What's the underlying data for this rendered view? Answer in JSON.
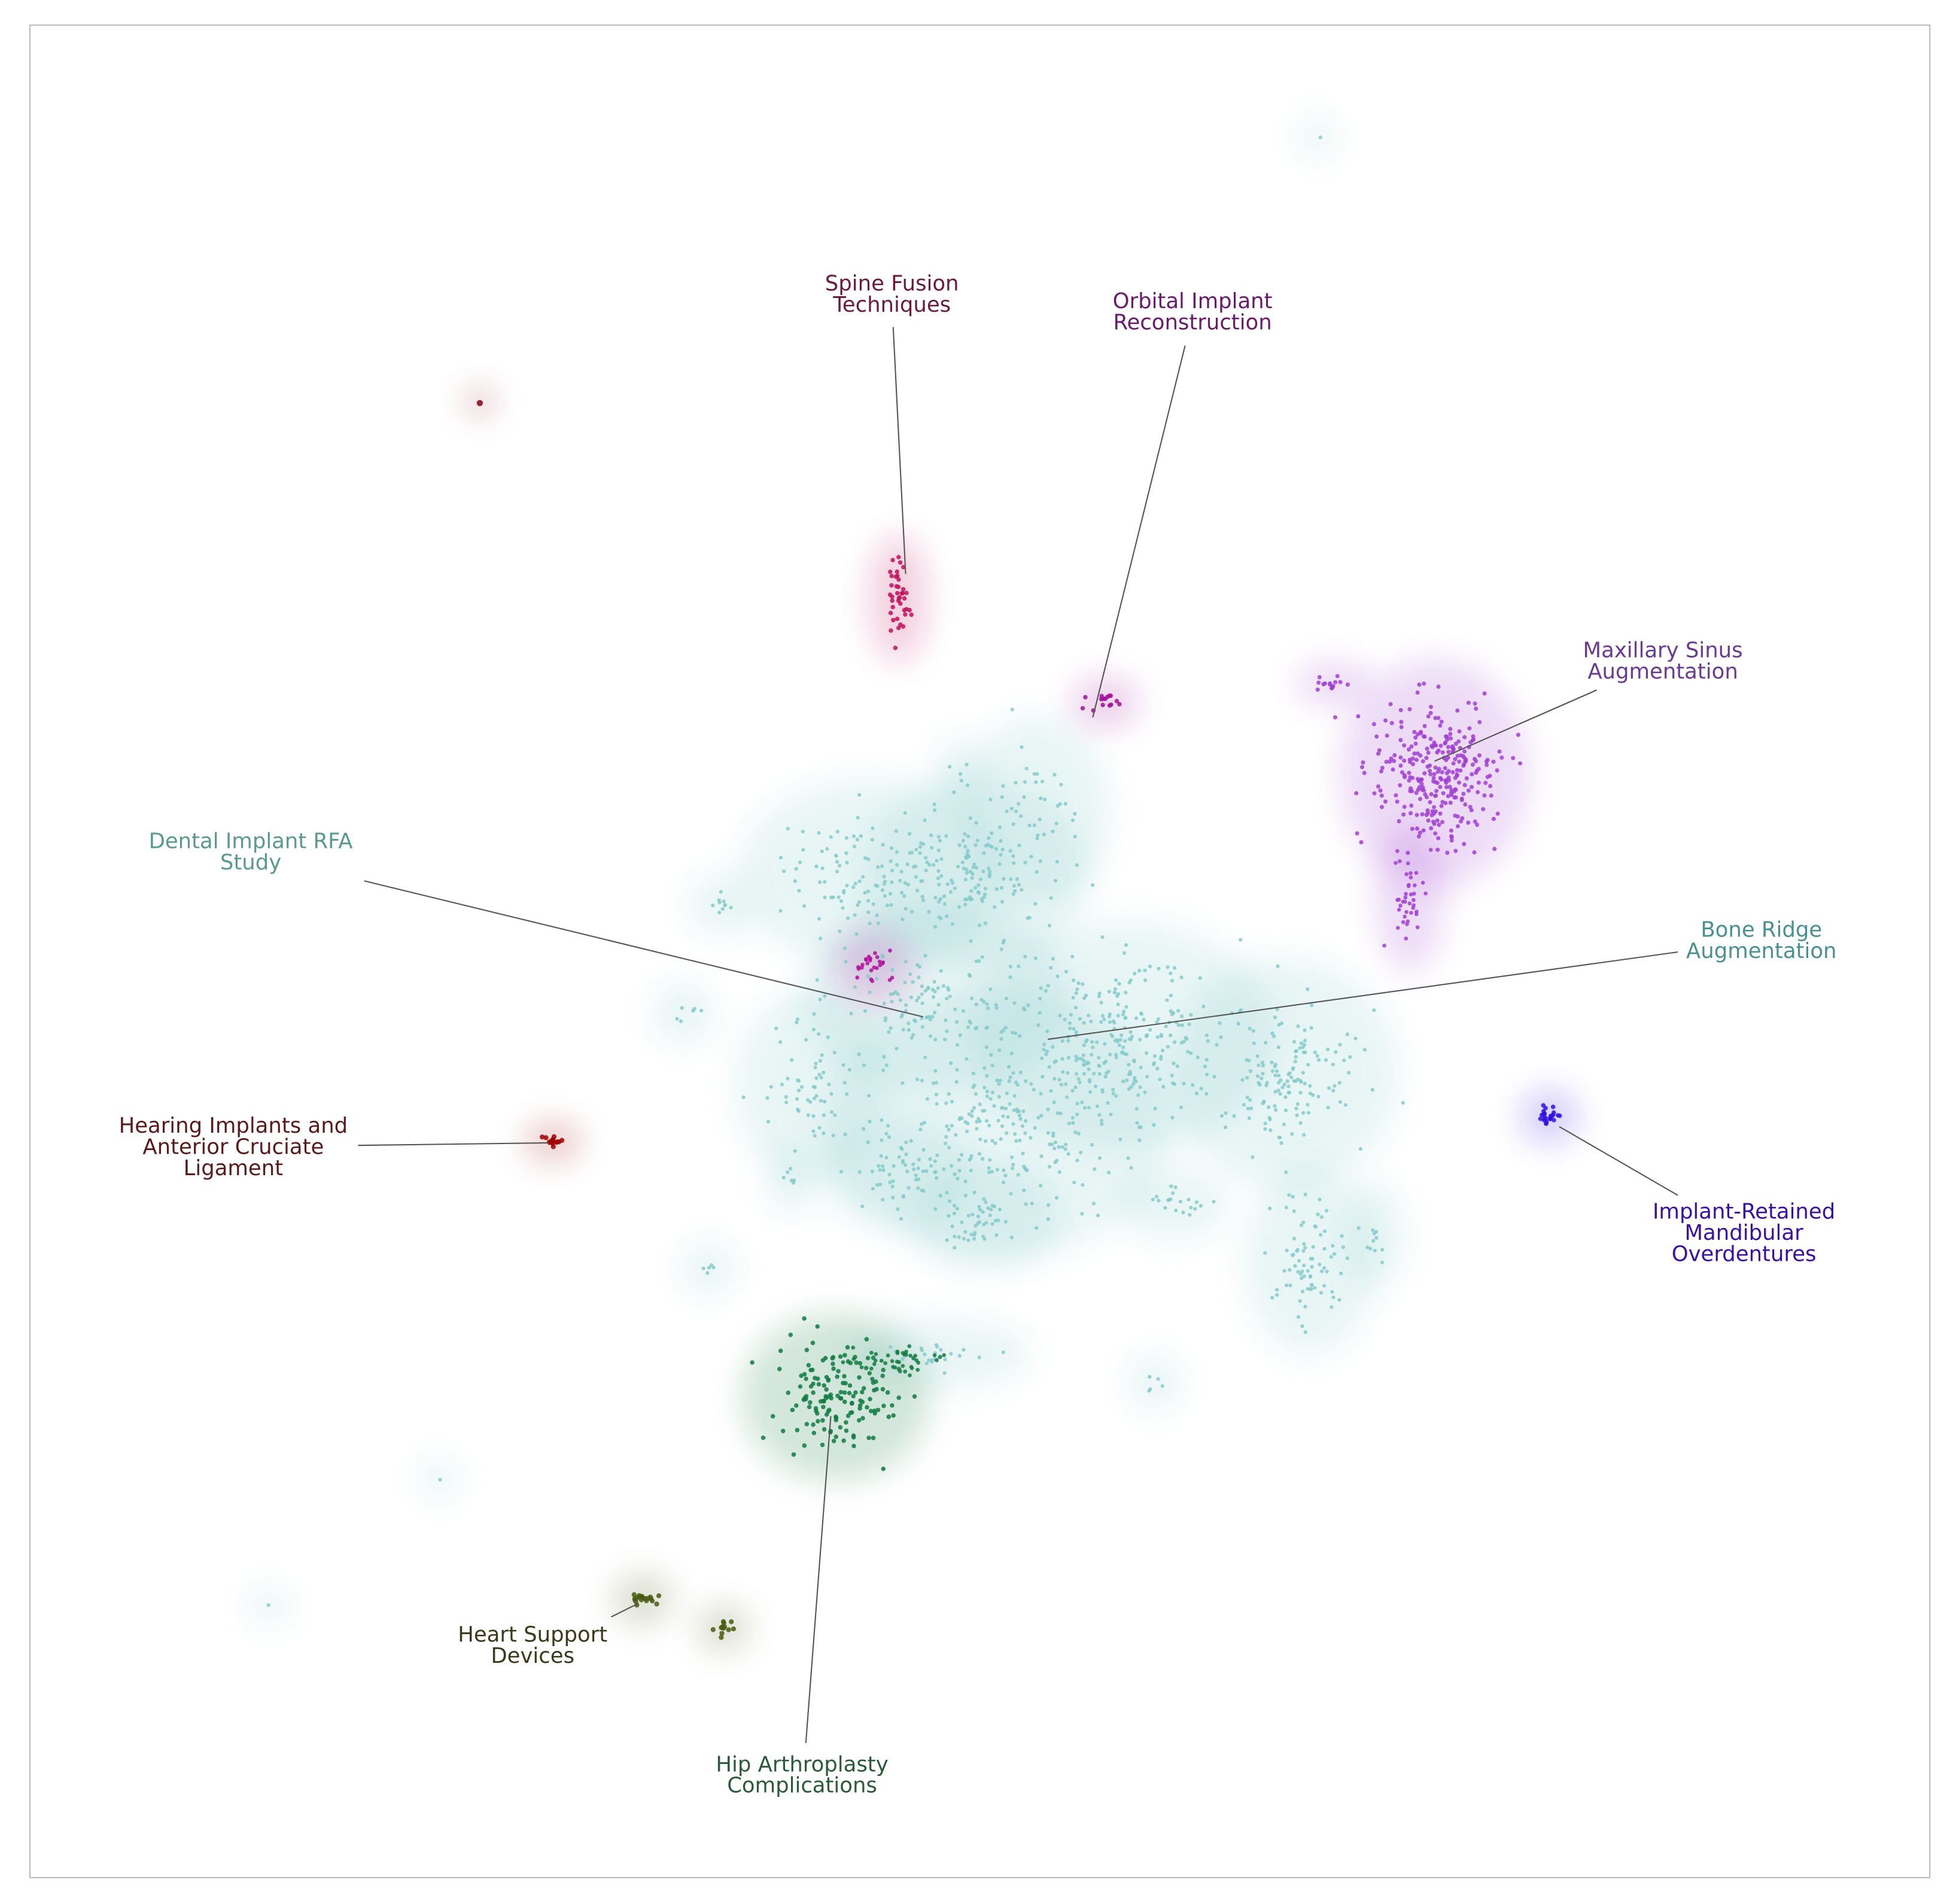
{
  "labels": [
    {
      "lines": [
        "Spine Fusion",
        "Techniques"
      ],
      "color": "#6a1a3a"
    },
    {
      "lines": [
        "Orbital Implant",
        "Reconstruction"
      ],
      "color": "#6a1a6a"
    },
    {
      "lines": [
        "Maxillary Sinus",
        "Augmentation"
      ],
      "color": "#6a3a90"
    },
    {
      "lines": [
        "Dental Implant RFA",
        "Study"
      ],
      "color": "#5a9a8a"
    },
    {
      "lines": [
        "Bone Ridge",
        "Augmentation"
      ],
      "color": "#4a9090"
    },
    {
      "lines": [
        "Hearing Implants and",
        "Anterior Cruciate",
        "Ligament"
      ],
      "color": "#5a1a1a"
    },
    {
      "lines": [
        "Implant-Retained",
        "Mandibular",
        "Overdentures"
      ],
      "color": "#3a10a0"
    },
    {
      "lines": [
        "Heart Support",
        "Devices"
      ],
      "color": "#3a3a1a"
    },
    {
      "lines": [
        "Hip Arthroplasty",
        "Complications"
      ],
      "color": "#2a5a3a"
    }
  ]
}
